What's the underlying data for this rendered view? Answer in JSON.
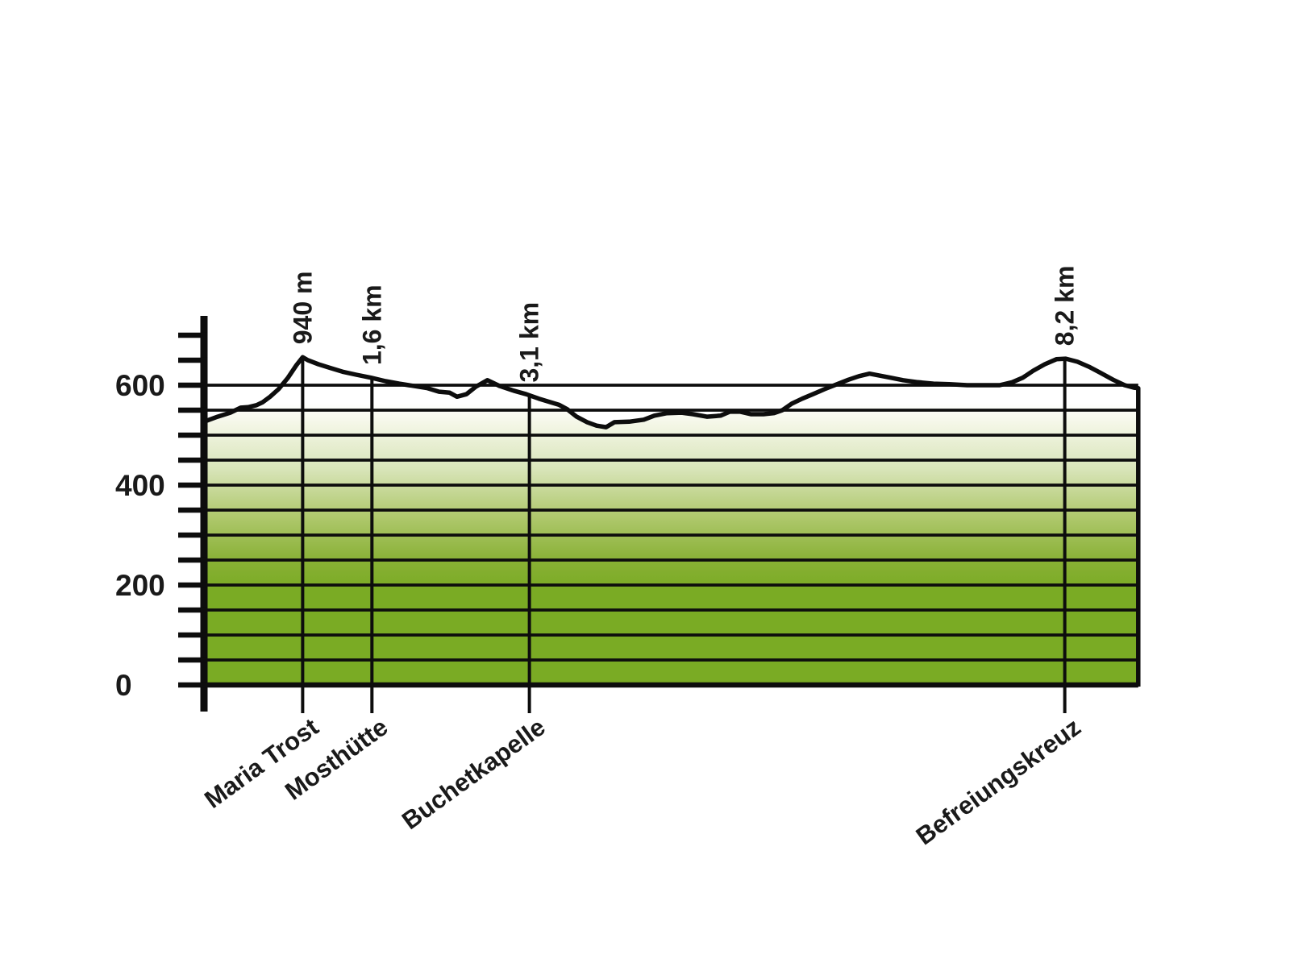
{
  "chart_data": {
    "type": "area",
    "title": "",
    "xlabel": "",
    "ylabel": "",
    "x_unit": "km",
    "y_unit": "m",
    "y_tick_labels": [
      0,
      200,
      400,
      600
    ],
    "y_minor_tick_step": 50,
    "y_axis_tick_max": 700,
    "gridline_step": 50,
    "gridline_max": 600,
    "ylim": [
      0,
      740
    ],
    "x_range_km": [
      0,
      8.9
    ],
    "legend": "none",
    "grid": "on",
    "waypoints": [
      {
        "name": "Maria Trost",
        "distance_label": "940 m",
        "km": 0.94
      },
      {
        "name": "Mosthütte",
        "distance_label": "1,6 km",
        "km": 1.6
      },
      {
        "name": "Buchetkapelle",
        "distance_label": "3,1 km",
        "km": 3.1
      },
      {
        "name": "Befreiungskreuz",
        "distance_label": "8,2 km",
        "km": 8.2
      }
    ],
    "profile_km_elev": [
      [
        0.0,
        527
      ],
      [
        0.13,
        537
      ],
      [
        0.25,
        545
      ],
      [
        0.35,
        555
      ],
      [
        0.42,
        556
      ],
      [
        0.5,
        560
      ],
      [
        0.56,
        566
      ],
      [
        0.63,
        577
      ],
      [
        0.71,
        592
      ],
      [
        0.8,
        615
      ],
      [
        0.88,
        640
      ],
      [
        0.94,
        656
      ],
      [
        0.99,
        650
      ],
      [
        1.09,
        642
      ],
      [
        1.21,
        634
      ],
      [
        1.32,
        627
      ],
      [
        1.45,
        621
      ],
      [
        1.59,
        615
      ],
      [
        1.73,
        608
      ],
      [
        1.86,
        603
      ],
      [
        2.01,
        598
      ],
      [
        2.13,
        594
      ],
      [
        2.24,
        587
      ],
      [
        2.34,
        585
      ],
      [
        2.41,
        577
      ],
      [
        2.5,
        582
      ],
      [
        2.59,
        597
      ],
      [
        2.7,
        610
      ],
      [
        2.82,
        598
      ],
      [
        2.95,
        589
      ],
      [
        3.07,
        582
      ],
      [
        3.19,
        573
      ],
      [
        3.3,
        566
      ],
      [
        3.38,
        561
      ],
      [
        3.46,
        552
      ],
      [
        3.55,
        537
      ],
      [
        3.65,
        526
      ],
      [
        3.74,
        519
      ],
      [
        3.83,
        516
      ],
      [
        3.91,
        526
      ],
      [
        4.05,
        527
      ],
      [
        4.19,
        531
      ],
      [
        4.29,
        539
      ],
      [
        4.41,
        544
      ],
      [
        4.55,
        545
      ],
      [
        4.66,
        542
      ],
      [
        4.79,
        537
      ],
      [
        4.92,
        539
      ],
      [
        5.01,
        547
      ],
      [
        5.11,
        547
      ],
      [
        5.21,
        542
      ],
      [
        5.33,
        542
      ],
      [
        5.43,
        544
      ],
      [
        5.51,
        550
      ],
      [
        5.6,
        563
      ],
      [
        5.7,
        573
      ],
      [
        5.8,
        582
      ],
      [
        5.91,
        592
      ],
      [
        6.03,
        602
      ],
      [
        6.14,
        611
      ],
      [
        6.24,
        618
      ],
      [
        6.34,
        623
      ],
      [
        6.44,
        619
      ],
      [
        6.54,
        615
      ],
      [
        6.66,
        610
      ],
      [
        6.8,
        606
      ],
      [
        6.95,
        603
      ],
      [
        7.1,
        602
      ],
      [
        7.27,
        600
      ],
      [
        7.44,
        600
      ],
      [
        7.58,
        600
      ],
      [
        7.7,
        606
      ],
      [
        7.8,
        615
      ],
      [
        7.9,
        629
      ],
      [
        8.01,
        642
      ],
      [
        8.12,
        652
      ],
      [
        8.21,
        653
      ],
      [
        8.32,
        647
      ],
      [
        8.43,
        637
      ],
      [
        8.53,
        626
      ],
      [
        8.66,
        611
      ],
      [
        8.77,
        600
      ],
      [
        8.86,
        595
      ],
      [
        8.9,
        594
      ]
    ],
    "colors": {
      "line": "#0d0d0d",
      "text": "#1a1a1a",
      "fill_gradient": [
        {
          "offset": 0.0,
          "color": "#ffffff"
        },
        {
          "offset": 0.12,
          "color": "#f3f6e5"
        },
        {
          "offset": 0.35,
          "color": "#d9e5ba"
        },
        {
          "offset": 0.6,
          "color": "#b0c96f"
        },
        {
          "offset": 0.85,
          "color": "#88b034"
        },
        {
          "offset": 1.0,
          "color": "#7aab24"
        }
      ]
    }
  }
}
